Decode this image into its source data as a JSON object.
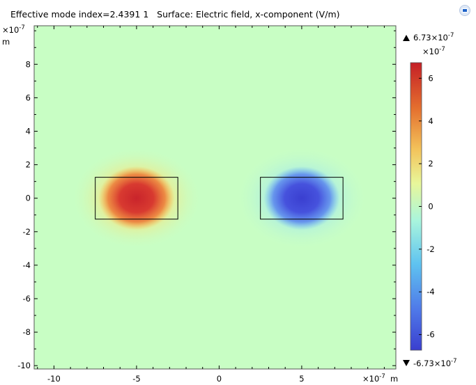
{
  "title": "Effective mode index=2.4391 1   Surface: Electric field, x-component (V/m)",
  "icons": {
    "corner": "comsol-logo-icon"
  },
  "chart_data": {
    "type": "heatmap",
    "title": "Effective mode index=2.4391 1   Surface: Electric field, x-component (V/m)",
    "quantity": "Electric field, x-component (V/m)",
    "x_axis": {
      "range": [
        -11.2,
        10.7
      ],
      "ticks": [
        -10,
        -5,
        0,
        5
      ],
      "tick_labels": [
        "-10",
        "-5",
        "0",
        "5"
      ],
      "multiplier": "×10",
      "multiplier_exp": "-7",
      "unit": "m"
    },
    "y_axis": {
      "range": [
        -10.2,
        10.3
      ],
      "ticks": [
        -10,
        -8,
        -6,
        -4,
        -2,
        0,
        2,
        4,
        6,
        8
      ],
      "tick_labels": [
        "-10",
        "-8",
        "-6",
        "-4",
        "-2",
        "0",
        "2",
        "4",
        "6",
        "8"
      ],
      "multiplier": "×10",
      "multiplier_exp": "-7",
      "unit": "m"
    },
    "field_lobes": [
      {
        "center": [
          -5,
          0
        ],
        "sign": "positive"
      },
      {
        "center": [
          5,
          0
        ],
        "sign": "negative"
      }
    ],
    "rectangles": [
      {
        "x": [
          -7.5,
          -2.5
        ],
        "y": [
          -1.25,
          1.25
        ]
      },
      {
        "x": [
          2.5,
          7.5
        ],
        "y": [
          -1.25,
          1.25
        ]
      }
    ],
    "colorbar": {
      "min": -6.73,
      "max": 6.73,
      "ticks": [
        -6,
        -4,
        -2,
        0,
        2,
        4,
        6
      ],
      "tick_labels": [
        "-6",
        "-4",
        "-2",
        "0",
        "2",
        "4",
        "6"
      ],
      "multiplier": "×10",
      "multiplier_exp": "-7",
      "max_label": "6.73×10",
      "min_label": "-6.73×10",
      "label_exp": "-7",
      "colors": [
        "#3a3fcf",
        "#4f78e8",
        "#5fc3f0",
        "#a9f5dd",
        "#e8f79a",
        "#f3c25a",
        "#e4702f",
        "#c51f26"
      ]
    }
  }
}
